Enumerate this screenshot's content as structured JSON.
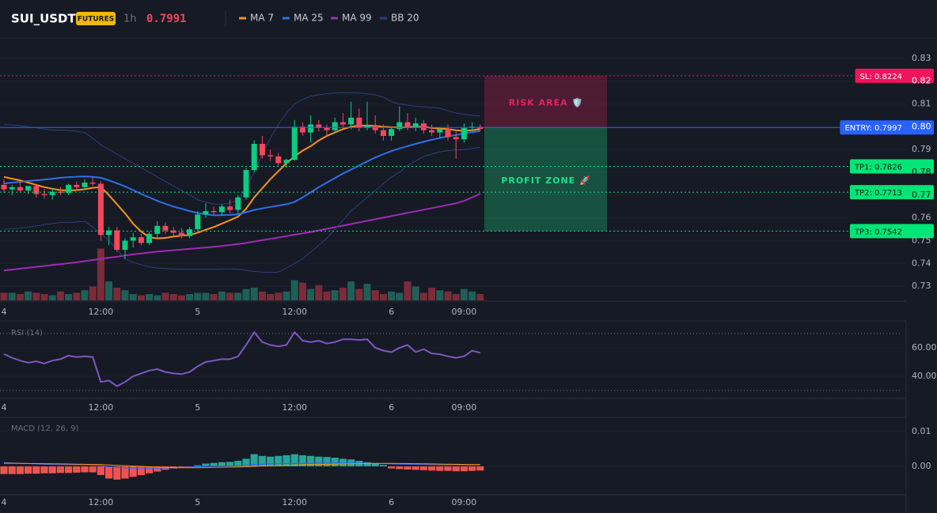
{
  "chart_data": [
    {
      "type": "candlestick",
      "title": "SUI_USDT",
      "badge": "FUTURES",
      "interval": "1h",
      "last_price": 0.7991,
      "categories": [
        "4",
        null,
        null,
        null,
        null,
        null,
        null,
        null,
        null,
        null,
        null,
        null,
        "12:00",
        null,
        null,
        null,
        null,
        null,
        null,
        null,
        null,
        null,
        null,
        null,
        "5",
        null,
        null,
        null,
        null,
        null,
        null,
        null,
        null,
        null,
        null,
        null,
        "12:00",
        null,
        null,
        null,
        null,
        null,
        null,
        null,
        null,
        null,
        null,
        null,
        "6",
        null,
        null,
        null,
        null,
        null,
        null,
        null,
        null,
        "09:00",
        null,
        null
      ],
      "open": [
        0.7745,
        0.7725,
        0.7735,
        0.772,
        0.774,
        0.7705,
        0.77,
        0.7715,
        0.771,
        0.7745,
        0.7735,
        0.7755,
        0.775,
        0.7525,
        0.7545,
        0.746,
        0.75,
        0.7515,
        0.749,
        0.753,
        0.7565,
        0.7545,
        0.7535,
        0.752,
        0.755,
        0.7615,
        0.763,
        0.7625,
        0.765,
        0.7635,
        0.769,
        0.781,
        0.7925,
        0.7875,
        0.787,
        0.784,
        0.7855,
        0.8,
        0.7975,
        0.801,
        0.7995,
        0.7985,
        0.802,
        0.801,
        0.804,
        0.7995,
        0.8005,
        0.7985,
        0.796,
        0.799,
        0.802,
        0.7995,
        0.8015,
        0.7985,
        0.7975,
        0.799,
        0.7955,
        0.7945,
        0.7995,
        0.8
      ],
      "high": [
        0.777,
        0.7745,
        0.776,
        0.774,
        0.775,
        0.7725,
        0.773,
        0.7735,
        0.775,
        0.776,
        0.777,
        0.778,
        0.776,
        0.756,
        0.756,
        0.751,
        0.7535,
        0.753,
        0.754,
        0.7585,
        0.758,
        0.756,
        0.7555,
        0.756,
        0.763,
        0.7665,
        0.765,
        0.766,
        0.768,
        0.77,
        0.782,
        0.794,
        0.796,
        0.79,
        0.7885,
        0.786,
        0.803,
        0.802,
        0.805,
        0.803,
        0.801,
        0.804,
        0.806,
        0.811,
        0.808,
        0.811,
        0.805,
        0.801,
        0.8,
        0.809,
        0.806,
        0.804,
        0.803,
        0.801,
        0.8,
        0.801,
        0.798,
        0.8015,
        0.802,
        0.801
      ],
      "low": [
        0.771,
        0.77,
        0.7715,
        0.7705,
        0.769,
        0.7685,
        0.768,
        0.77,
        0.77,
        0.772,
        0.7725,
        0.774,
        0.75,
        0.748,
        0.745,
        0.742,
        0.747,
        0.748,
        0.748,
        0.751,
        0.753,
        0.752,
        0.751,
        0.751,
        0.754,
        0.76,
        0.761,
        0.761,
        0.762,
        0.762,
        0.768,
        0.78,
        0.786,
        0.785,
        0.783,
        0.782,
        0.785,
        0.796,
        0.793,
        0.798,
        0.796,
        0.7975,
        0.8,
        0.799,
        0.798,
        0.7985,
        0.797,
        0.794,
        0.794,
        0.798,
        0.7985,
        0.798,
        0.797,
        0.796,
        0.795,
        0.794,
        0.786,
        0.793,
        0.798,
        0.7985
      ],
      "close": [
        0.7725,
        0.7735,
        0.772,
        0.774,
        0.7705,
        0.77,
        0.7715,
        0.771,
        0.7745,
        0.7735,
        0.7755,
        0.775,
        0.7525,
        0.7545,
        0.746,
        0.75,
        0.7515,
        0.749,
        0.753,
        0.7565,
        0.7545,
        0.7535,
        0.752,
        0.755,
        0.7615,
        0.763,
        0.7625,
        0.765,
        0.7635,
        0.769,
        0.781,
        0.7925,
        0.7875,
        0.787,
        0.784,
        0.7855,
        0.8,
        0.7975,
        0.801,
        0.7995,
        0.7985,
        0.802,
        0.801,
        0.804,
        0.7995,
        0.8005,
        0.7985,
        0.796,
        0.799,
        0.802,
        0.7995,
        0.8015,
        0.7985,
        0.7975,
        0.799,
        0.7955,
        0.7945,
        0.7995,
        0.8,
        0.7991
      ],
      "up_color": "#0ecb81",
      "down_color": "#f6465d",
      "volume": [
        12,
        12,
        10,
        14,
        12,
        10,
        8,
        14,
        10,
        12,
        16,
        22,
        82,
        30,
        20,
        16,
        10,
        8,
        10,
        8,
        12,
        10,
        8,
        10,
        12,
        12,
        10,
        14,
        12,
        12,
        18,
        20,
        14,
        10,
        12,
        14,
        32,
        28,
        18,
        24,
        14,
        16,
        20,
        30,
        18,
        26,
        16,
        10,
        14,
        12,
        30,
        22,
        12,
        20,
        16,
        14,
        10,
        18,
        14,
        10
      ],
      "vlim": [
        0,
        100
      ],
      "volume_up_color": "#1f5f58",
      "volume_down_color": "#7c2b38",
      "series": [
        {
          "name": "MA 7",
          "color": "#f7931a",
          "values": [
            0.778,
            0.7772,
            0.7765,
            0.7755,
            0.7745,
            0.7735,
            0.7728,
            0.7722,
            0.772,
            0.7722,
            0.7726,
            0.7732,
            0.7735,
            0.77,
            0.766,
            0.762,
            0.7575,
            0.754,
            0.7515,
            0.751,
            0.7512,
            0.7518,
            0.7522,
            0.7525,
            0.7535,
            0.7548,
            0.756,
            0.7575,
            0.759,
            0.7605,
            0.764,
            0.769,
            0.773,
            0.777,
            0.7805,
            0.784,
            0.787,
            0.7895,
            0.7915,
            0.794,
            0.796,
            0.7975,
            0.799,
            0.8,
            0.8005,
            0.8005,
            0.8004,
            0.8,
            0.7998,
            0.7997,
            0.7998,
            0.8,
            0.8,
            0.7995,
            0.7992,
            0.799,
            0.7985,
            0.7982,
            0.7985,
            0.799
          ]
        },
        {
          "name": "MA 25",
          "color": "#2f6fe8",
          "values": [
            0.7751,
            0.7755,
            0.7758,
            0.7762,
            0.7765,
            0.7768,
            0.7772,
            0.7776,
            0.7779,
            0.7781,
            0.7782,
            0.778,
            0.7776,
            0.7765,
            0.7752,
            0.7738,
            0.7722,
            0.7705,
            0.769,
            0.7675,
            0.7662,
            0.765,
            0.764,
            0.763,
            0.7622,
            0.7616,
            0.7612,
            0.7612,
            0.7613,
            0.7616,
            0.7625,
            0.7635,
            0.7642,
            0.7648,
            0.7654,
            0.766,
            0.767,
            0.769,
            0.7712,
            0.7735,
            0.7755,
            0.7775,
            0.7795,
            0.7812,
            0.783,
            0.7848,
            0.7865,
            0.788,
            0.7893,
            0.7905,
            0.7915,
            0.7925,
            0.7934,
            0.7943,
            0.7951,
            0.7958,
            0.7964,
            0.797,
            0.7976,
            0.7981
          ]
        },
        {
          "name": "MA 99",
          "color": "#a02bb5",
          "values": [
            0.7369,
            0.7373,
            0.7377,
            0.7381,
            0.7385,
            0.7389,
            0.7393,
            0.7397,
            0.7401,
            0.7405,
            0.741,
            0.7415,
            0.742,
            0.7425,
            0.743,
            0.7435,
            0.744,
            0.7444,
            0.7448,
            0.7452,
            0.7455,
            0.7458,
            0.7461,
            0.7464,
            0.7467,
            0.747,
            0.7473,
            0.7477,
            0.7481,
            0.7485,
            0.749,
            0.7496,
            0.7502,
            0.7508,
            0.7514,
            0.752,
            0.7526,
            0.7532,
            0.7538,
            0.7545,
            0.7552,
            0.7559,
            0.7566,
            0.7573,
            0.758,
            0.7587,
            0.7594,
            0.7601,
            0.7608,
            0.7615,
            0.7622,
            0.7629,
            0.7636,
            0.7643,
            0.765,
            0.7657,
            0.7664,
            0.7675,
            0.769,
            0.7706
          ]
        },
        {
          "name": "BB 20",
          "color": "#2b3f7e",
          "upper": [
            0.801,
            0.8008,
            0.8005,
            0.8,
            0.7995,
            0.799,
            0.7985,
            0.7985,
            0.7985,
            0.798,
            0.7975,
            0.795,
            0.792,
            0.79,
            0.788,
            0.786,
            0.784,
            0.782,
            0.78,
            0.778,
            0.776,
            0.774,
            0.772,
            0.77,
            0.768,
            0.767,
            0.766,
            0.766,
            0.7665,
            0.768,
            0.773,
            0.78,
            0.788,
            0.795,
            0.801,
            0.806,
            0.81,
            0.812,
            0.8135,
            0.814,
            0.8145,
            0.8148,
            0.815,
            0.815,
            0.8148,
            0.8145,
            0.814,
            0.813,
            0.811,
            0.81,
            0.8095,
            0.809,
            0.8088,
            0.8085,
            0.8082,
            0.807,
            0.806,
            0.8055,
            0.805,
            0.8048
          ],
          "lower": [
            0.755,
            0.7552,
            0.7555,
            0.756,
            0.7565,
            0.757,
            0.7575,
            0.758,
            0.758,
            0.7582,
            0.7585,
            0.756,
            0.753,
            0.75,
            0.746,
            0.742,
            0.7405,
            0.7395,
            0.7385,
            0.738,
            0.7378,
            0.7376,
            0.7375,
            0.7374,
            0.7374,
            0.7374,
            0.7374,
            0.7376,
            0.7376,
            0.7375,
            0.737,
            0.7365,
            0.7362,
            0.736,
            0.7362,
            0.738,
            0.74,
            0.742,
            0.745,
            0.748,
            0.751,
            0.755,
            0.759,
            0.763,
            0.766,
            0.769,
            0.772,
            0.775,
            0.778,
            0.78,
            0.783,
            0.785,
            0.787,
            0.788,
            0.789,
            0.7895,
            0.7898,
            0.79,
            0.7905,
            0.791
          ]
        }
      ],
      "ylim": [
        0.7238,
        0.8383
      ],
      "yticks": [
        0.83,
        0.82,
        0.81,
        {
          "value": 0.8,
          "label": "0.80"
        },
        0.79,
        0.78,
        0.77,
        0.76,
        0.75,
        0.74,
        0.73
      ],
      "grid": true,
      "levels": [
        {
          "label": "SL: 0.8224",
          "value": 0.8224,
          "color": "#f0145a",
          "text_color": "#ffffff",
          "dashed": true
        },
        {
          "label": "ENTRY: 0.7997",
          "value": 0.7997,
          "color": "#2962ff",
          "text_color": "#ffffff",
          "dashed": false
        },
        {
          "label": "TP1: 0.7826",
          "value": 0.7826,
          "color": "#00e676",
          "text_color": "#0b1a12",
          "dashed": true
        },
        {
          "label": "TP2: 0.7713",
          "value": 0.7713,
          "color": "#00e676",
          "text_color": "#0b1a12",
          "dashed": true
        },
        {
          "label": "TP3: 0.7542",
          "value": 0.7542,
          "color": "#00e676",
          "text_color": "#0b1a12",
          "dashed": true
        }
      ],
      "zones": [
        {
          "label": "RISK AREA 🛡️",
          "from": 0.8224,
          "to": 0.7997,
          "color": "#e0245e"
        },
        {
          "label": "PROFIT ZONE 🚀",
          "from": 0.7997,
          "to": 0.7542,
          "color": "#1de38a"
        }
      ]
    },
    {
      "type": "line",
      "title": "RSI (14)",
      "categories": [
        "4",
        null,
        null,
        null,
        null,
        null,
        null,
        null,
        null,
        null,
        null,
        null,
        "12:00",
        null,
        null,
        null,
        null,
        null,
        null,
        null,
        null,
        null,
        null,
        null,
        "5",
        null,
        null,
        null,
        null,
        null,
        null,
        null,
        null,
        null,
        null,
        null,
        "12:00",
        null,
        null,
        null,
        null,
        null,
        null,
        null,
        null,
        null,
        null,
        null,
        "6",
        null,
        null,
        null,
        null,
        null,
        null,
        null,
        null,
        "09:00",
        null,
        null
      ],
      "color": "#7e57c2",
      "values": [
        55.6,
        53,
        51,
        49.5,
        50.5,
        49,
        51,
        52,
        54.5,
        53.5,
        54,
        53.5,
        36,
        37,
        33,
        36,
        40,
        42,
        44,
        45,
        43,
        42,
        41.5,
        43,
        47,
        50,
        51,
        52,
        52,
        54,
        62,
        71,
        64,
        62,
        61,
        62,
        71,
        65,
        64,
        65,
        63,
        64,
        66,
        66,
        65.5,
        66,
        60,
        58,
        57,
        60,
        62,
        57,
        59,
        56,
        55.5,
        54,
        53,
        54,
        58,
        56.5
      ],
      "bands": [
        70,
        30
      ],
      "ylim": [
        25,
        77.8
      ],
      "yticks": [
        {
          "value": 60,
          "label": "60.00"
        },
        {
          "value": 40,
          "label": "40.00"
        }
      ]
    },
    {
      "type": "macd",
      "title": "MACD (12, 26, 9)",
      "categories": [
        "4",
        null,
        null,
        null,
        null,
        null,
        null,
        null,
        null,
        null,
        null,
        null,
        "12:00",
        null,
        null,
        null,
        null,
        null,
        null,
        null,
        null,
        null,
        null,
        null,
        "5",
        null,
        null,
        null,
        null,
        null,
        null,
        null,
        null,
        null,
        null,
        null,
        "12:00",
        null,
        null,
        null,
        null,
        null,
        null,
        null,
        null,
        null,
        null,
        null,
        "6",
        null,
        null,
        null,
        null,
        null,
        null,
        null,
        null,
        "09:00",
        null,
        null
      ],
      "histogram": [
        -0.0022,
        -0.0022,
        -0.0022,
        -0.0021,
        -0.0021,
        -0.002,
        -0.002,
        -0.0019,
        -0.0019,
        -0.0018,
        -0.0017,
        -0.0017,
        -0.0025,
        -0.0035,
        -0.0038,
        -0.0035,
        -0.003,
        -0.0025,
        -0.002,
        -0.0015,
        -0.001,
        -0.0006,
        -0.0003,
        -0.0002,
        0.0003,
        0.0008,
        0.001,
        0.0012,
        0.0013,
        0.0016,
        0.0022,
        0.0035,
        0.003,
        0.0028,
        0.003,
        0.0032,
        0.0035,
        0.0032,
        0.003,
        0.0028,
        0.0027,
        0.0025,
        0.0022,
        0.002,
        0.0016,
        0.0012,
        0.0008,
        0.0004,
        -0.0006,
        -0.0008,
        -0.0009,
        -0.001,
        -0.0011,
        -0.0012,
        -0.0013,
        -0.0013,
        -0.0014,
        -0.0014,
        -0.0013,
        -0.0012
      ],
      "positive_color": "#26a69a",
      "negative_color": "#ef5350",
      "macd": [
        0.00114,
        0.001,
        0.0009,
        0.0008,
        0.0007,
        0.0006,
        0.00055,
        0.0005,
        0.00048,
        0.00046,
        0.00045,
        0.0004,
        0.0002,
        -0.0001,
        -0.0003,
        -0.00045,
        -0.0005,
        -0.0005,
        -0.0005,
        -0.0005,
        -0.00048,
        -0.0004,
        -0.0003,
        -0.0002,
        -0.0001,
        0.0,
        0.0001,
        0.0001,
        0.00015,
        0.00023,
        0.00035,
        0.0006,
        0.00065,
        0.0007,
        0.00075,
        0.0008,
        0.00085,
        0.0009,
        0.00092,
        0.00095,
        0.001,
        0.001,
        0.001,
        0.00098,
        0.00095,
        0.0009,
        0.00085,
        0.0008,
        0.0007,
        0.00065,
        0.0006,
        0.00055,
        0.0005,
        0.00045,
        0.0004,
        0.00042,
        0.00045,
        0.0004,
        0.0004,
        0.0004
      ],
      "macd_color": "#2962ff",
      "signal": [
        0.0009,
        0.00088,
        0.00085,
        0.00082,
        0.0008,
        0.00078,
        0.00075,
        0.0007,
        0.00068,
        0.00065,
        0.0006,
        0.00055,
        0.0005,
        0.0004,
        0.0003,
        0.0002,
        0.0001,
        0.0,
        -0.0001,
        -0.0002,
        -0.0003,
        -0.00035,
        -0.0004,
        -0.0004,
        -0.00038,
        -0.00035,
        -0.0003,
        -0.00025,
        -0.0002,
        -0.00015,
        -0.0001,
        0.0,
        0.0001,
        0.00015,
        0.0002,
        0.0003,
        0.00035,
        0.00045,
        0.0005,
        0.00055,
        0.0006,
        0.00065,
        0.0007,
        0.00075,
        0.0008,
        0.00083,
        0.00085,
        0.00085,
        0.00084,
        0.00082,
        0.0008,
        0.00078,
        0.00075,
        0.0007,
        0.00067,
        0.00063,
        0.0006,
        0.00055,
        0.0005,
        0.0005
      ],
      "signal_color": "#ff9800",
      "ylim": [
        -0.00795,
        0.01364
      ],
      "yticks": [
        0.01,
        {
          "value": 0,
          "label": "0.00"
        }
      ]
    }
  ]
}
